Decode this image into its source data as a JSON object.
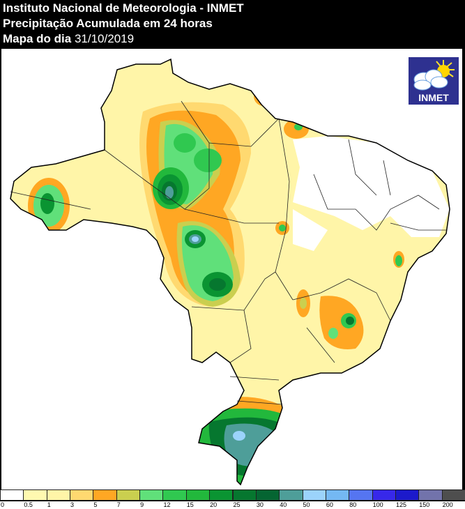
{
  "header": {
    "title": "Instituto Nacional de Meteorologia - INMET",
    "subtitle": "Precipitação Acumulada em 24 horas",
    "date_label": "Mapa do dia",
    "date": "31/10/2019"
  },
  "logo": {
    "text": "INMET",
    "icon": "cloud-sun-icon"
  },
  "map": {
    "region": "Brasil",
    "variable": "Precipitação acumulada 24h (mm)",
    "features": [
      {
        "area": "Rio Grande do Sul",
        "intensity": "40-50 mm (teal core with 50-60 light blue)"
      },
      {
        "area": "Mato Grosso / Rondônia north",
        "intensity": "25-50 mm (dark green to teal core)"
      },
      {
        "area": "Mato Grosso central",
        "intensity": "20-30 mm"
      },
      {
        "area": "Acre",
        "intensity": "12-20 mm"
      },
      {
        "area": "Minas Gerais",
        "intensity": "9-25 mm"
      },
      {
        "area": "Nordeste",
        "intensity": "0 mm mostly"
      }
    ]
  },
  "legend": {
    "items": [
      {
        "label": "0",
        "color": "#ffffff"
      },
      {
        "label": "0.5",
        "color": "#fff9b0"
      },
      {
        "label": "1",
        "color": "#fff5a8"
      },
      {
        "label": "3",
        "color": "#ffd970"
      },
      {
        "label": "5",
        "color": "#ffa723"
      },
      {
        "label": "7",
        "color": "#cacf4f"
      },
      {
        "label": "9",
        "color": "#60e07a"
      },
      {
        "label": "12",
        "color": "#30c850"
      },
      {
        "label": "15",
        "color": "#22b83c"
      },
      {
        "label": "20",
        "color": "#0a9432"
      },
      {
        "label": "25",
        "color": "#06772f"
      },
      {
        "label": "30",
        "color": "#056532"
      },
      {
        "label": "40",
        "color": "#4e9e99"
      },
      {
        "label": "50",
        "color": "#9bd3fb"
      },
      {
        "label": "60",
        "color": "#74b8f3"
      },
      {
        "label": "80",
        "color": "#5575f1"
      },
      {
        "label": "100",
        "color": "#3728ea"
      },
      {
        "label": "125",
        "color": "#1c1acb"
      },
      {
        "label": "150",
        "color": "#7273ab"
      },
      {
        "label": "200",
        "color": "#4e4e4e"
      }
    ]
  }
}
